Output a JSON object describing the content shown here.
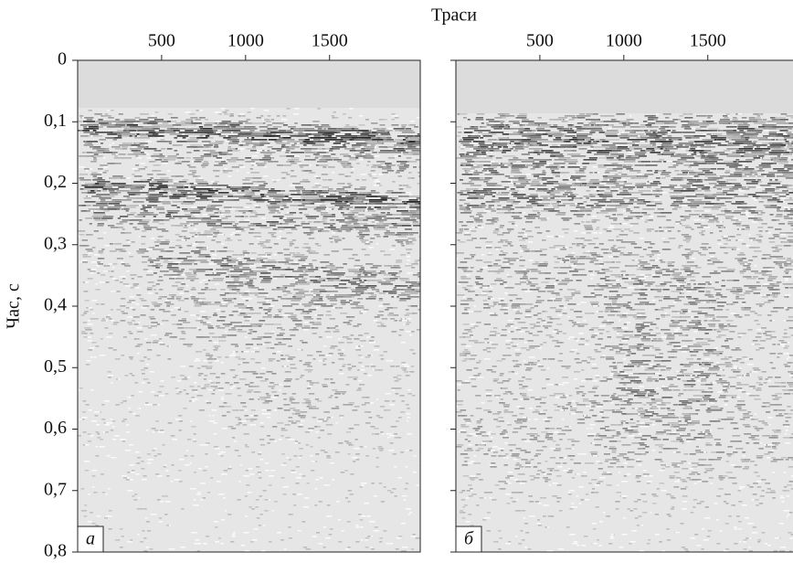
{
  "chart_data": [
    {
      "type": "seismic-section",
      "title": "Траси",
      "ylabel": "Час, с",
      "panel_label": "а",
      "xlim": [
        0,
        2040
      ],
      "xticks": [
        500,
        1000,
        1500
      ],
      "ylim": [
        0,
        0.8
      ],
      "yticks": [
        0,
        {
          "value": 0.1,
          "label": "0,1"
        },
        {
          "value": 0.2,
          "label": "0,2"
        },
        {
          "value": 0.3,
          "label": "0,3"
        },
        {
          "value": 0.4,
          "label": "0,4"
        },
        {
          "value": 0.5,
          "label": "0,5"
        },
        {
          "value": 0.6,
          "label": "0,6"
        },
        {
          "value": 0.7,
          "label": "0,7"
        },
        {
          "value": 0.8,
          "label": "0,8"
        }
      ]
    },
    {
      "type": "seismic-section",
      "panel_label": "б",
      "xlim": [
        0,
        2040
      ],
      "xticks": [
        500,
        1000,
        1500
      ],
      "ylim": [
        0,
        0.8
      ]
    }
  ]
}
